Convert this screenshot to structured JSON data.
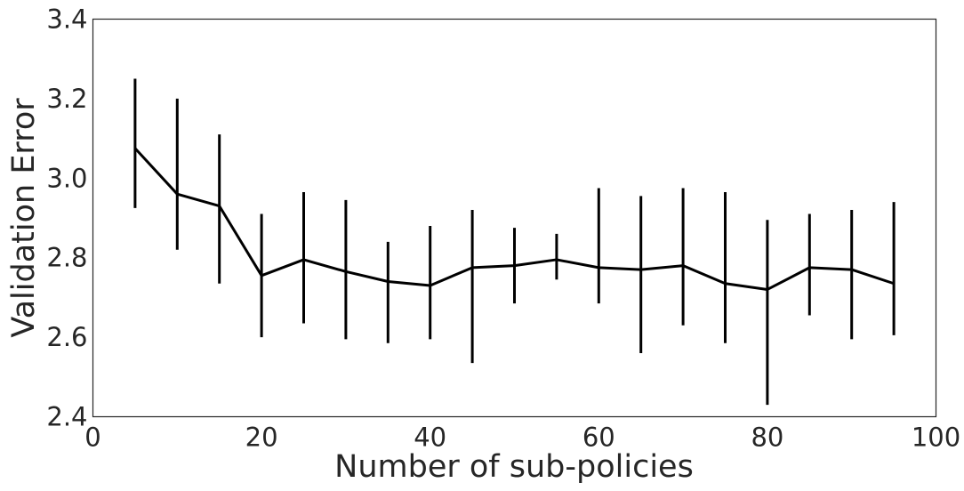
{
  "chart_data": {
    "type": "line",
    "title": "",
    "xlabel": "Number of sub-policies",
    "ylabel": "Validation Error",
    "xlim": [
      0,
      100
    ],
    "ylim": [
      2.4,
      3.4
    ],
    "xticks": [
      0,
      20,
      40,
      60,
      80,
      100
    ],
    "yticks": [
      2.4,
      2.6,
      2.8,
      3.0,
      3.2,
      3.4
    ],
    "xtick_labels": [
      "0",
      "20",
      "40",
      "60",
      "80",
      "100"
    ],
    "ytick_labels": [
      "2.4",
      "2.6",
      "2.8",
      "3.0",
      "3.2",
      "3.4"
    ],
    "grid": false,
    "legend": null,
    "line_color": "#000000",
    "series": [
      {
        "x": [
          5,
          10,
          15,
          20,
          25,
          30,
          35,
          40,
          45,
          50,
          55,
          60,
          65,
          70,
          75,
          80,
          85,
          90,
          95
        ],
        "y": [
          3.075,
          2.96,
          2.93,
          2.755,
          2.795,
          2.765,
          2.74,
          2.73,
          2.775,
          2.78,
          2.795,
          2.775,
          2.77,
          2.78,
          2.735,
          2.72,
          2.775,
          2.77,
          2.735
        ],
        "error_low": [
          2.925,
          2.82,
          2.735,
          2.6,
          2.635,
          2.595,
          2.585,
          2.595,
          2.535,
          2.685,
          2.745,
          2.685,
          2.56,
          2.63,
          2.585,
          2.43,
          2.655,
          2.595,
          2.605
        ],
        "error_high": [
          3.25,
          3.2,
          3.11,
          2.91,
          2.965,
          2.945,
          2.84,
          2.88,
          2.92,
          2.875,
          2.86,
          2.975,
          2.955,
          2.975,
          2.965,
          2.895,
          2.91,
          2.92,
          2.94
        ]
      }
    ]
  }
}
